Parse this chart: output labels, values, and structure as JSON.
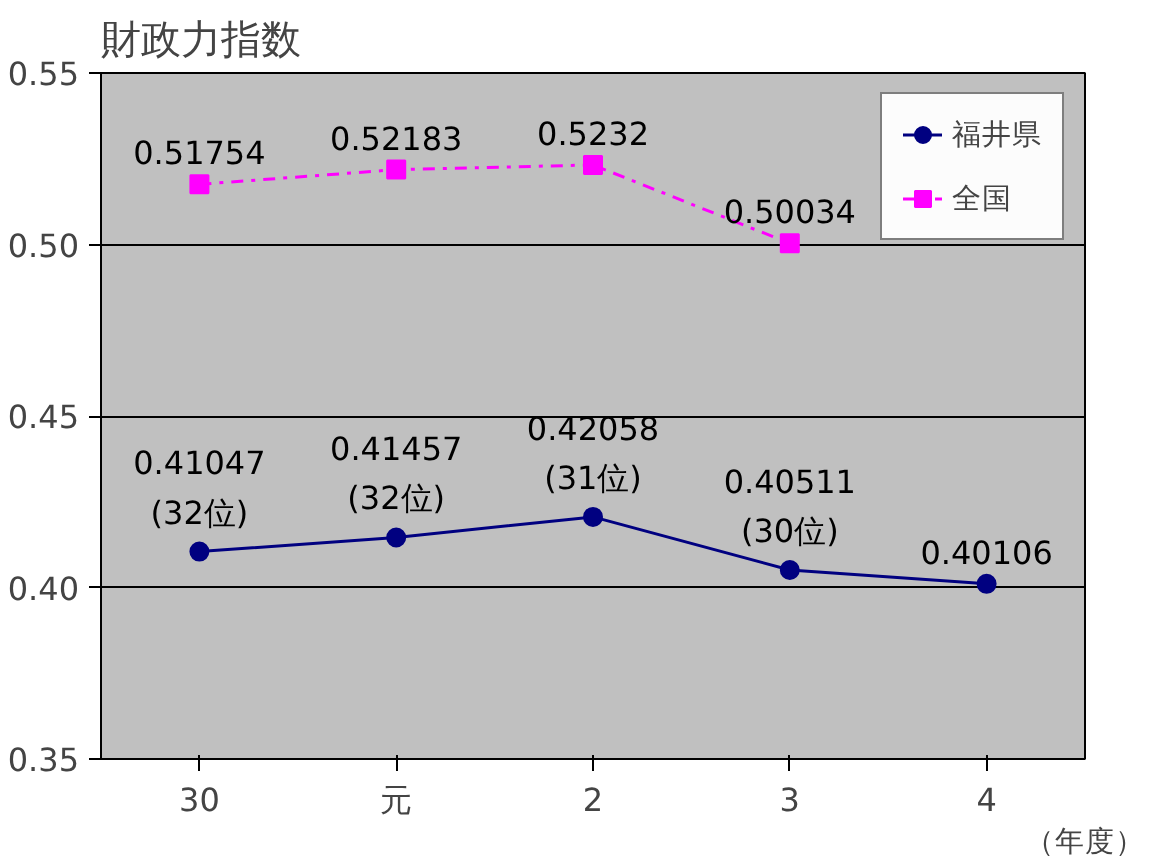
{
  "chart_data": {
    "type": "line",
    "title": "財政力指数",
    "xlabel": "（年度）",
    "categories": [
      "30",
      "元",
      "2",
      "3",
      "4"
    ],
    "series": [
      {
        "name": "福井県",
        "color": "#000080",
        "marker": "circle",
        "line_style": "solid",
        "values": [
          0.41047,
          0.41457,
          0.42058,
          0.40511,
          0.40106
        ],
        "value_labels": [
          "0.41047\n(32位)",
          "0.41457\n(32位)",
          "0.42058\n(31位)",
          "0.40511\n(30位)",
          "0.40106"
        ]
      },
      {
        "name": "全国",
        "color": "#ff00ff",
        "marker": "square",
        "line_style": "dashdot",
        "values": [
          0.51754,
          0.52183,
          0.5232,
          0.50034,
          null
        ],
        "value_labels": [
          "0.51754",
          "0.52183",
          "0.5232",
          "0.50034",
          null
        ]
      }
    ],
    "ylim": [
      0.35,
      0.55
    ],
    "yticks": [
      {
        "value": 0.35,
        "label": "0.35"
      },
      {
        "value": 0.4,
        "label": "0.40"
      },
      {
        "value": 0.45,
        "label": "0.45"
      },
      {
        "value": 0.5,
        "label": "0.50"
      },
      {
        "value": 0.55,
        "label": "0.55"
      }
    ],
    "grid": "y",
    "legend": "top right"
  }
}
